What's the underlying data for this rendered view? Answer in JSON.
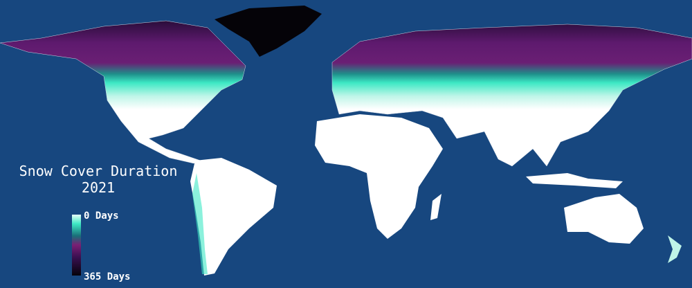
{
  "title": "Snow Cover Duration",
  "year": "2021",
  "legend": {
    "top_label": "0 Days",
    "bottom_label": "365 Days"
  }
}
